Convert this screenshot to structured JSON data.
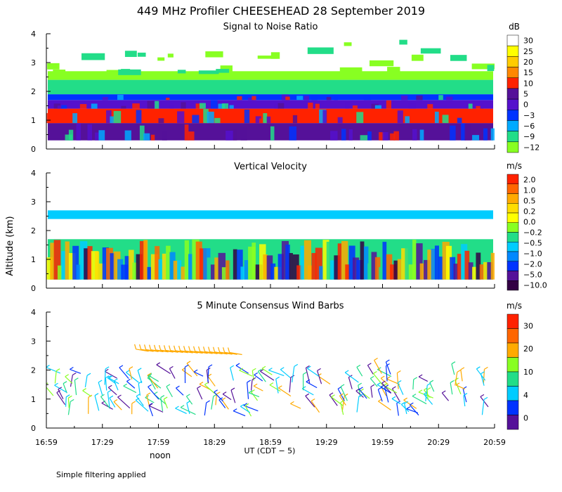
{
  "title": "449 MHz Profiler CHEESEHEAD 28 September 2019",
  "ylabel": "Altitude (km)",
  "footer": "Simple filtering applied",
  "chart_data": [
    {
      "type": "heatmap",
      "title": "Signal to Noise Ratio",
      "colorbar_unit": "dB",
      "colorbar_labels": [
        "30",
        "25",
        "20",
        "15",
        "10",
        "5",
        "0",
        "−3",
        "−6",
        "−9",
        "−12"
      ],
      "colorbar_colors": [
        "#ffffff",
        "#ffff00",
        "#ffcc00",
        "#ff8800",
        "#ff2200",
        "#551199",
        "#5511cc",
        "#0033ff",
        "#00aaff",
        "#22dd88",
        "#88ff22"
      ],
      "x_ticks": [
        "16:59",
        "17:29",
        "17:59",
        "18:29",
        "18:59",
        "19:29",
        "19:59",
        "20:29",
        "20:59"
      ],
      "y_ticks": [
        0,
        1,
        2,
        3,
        4
      ],
      "ylim": [
        0,
        4
      ],
      "xlim": [
        "16:59",
        "20:59"
      ],
      "layers": [
        {
          "from_km": 0.3,
          "to_km": 0.9,
          "color": "#551199"
        },
        {
          "from_km": 0.9,
          "to_km": 1.4,
          "color": "#ff2200"
        },
        {
          "from_km": 1.4,
          "to_km": 1.7,
          "color": "#5511cc"
        },
        {
          "from_km": 1.7,
          "to_km": 1.9,
          "color": "#0033ff"
        },
        {
          "from_km": 1.9,
          "to_km": 2.4,
          "color": "#22dd88"
        },
        {
          "from_km": 2.4,
          "to_km": 2.7,
          "color": "#88ff22"
        }
      ]
    },
    {
      "type": "heatmap",
      "title": "Vertical Velocity",
      "colorbar_unit": "m/s",
      "colorbar_labels": [
        "2.0",
        "1.0",
        "0.5",
        "0.2",
        "0.0",
        "−0.2",
        "−0.5",
        "−1.0",
        "−2.0",
        "−5.0",
        "−10.0"
      ],
      "colorbar_colors": [
        "#ff2200",
        "#ff6600",
        "#ffaa00",
        "#ffdd00",
        "#ffff00",
        "#88ff22",
        "#22dd88",
        "#00ccff",
        "#0088ff",
        "#0033ff",
        "#551199",
        "#330044"
      ],
      "x_ticks": [
        "16:59",
        "17:29",
        "17:59",
        "18:29",
        "18:59",
        "19:29",
        "19:59",
        "20:29",
        "20:59"
      ],
      "y_ticks": [
        0,
        1,
        2,
        3,
        4
      ],
      "ylim": [
        0,
        4
      ],
      "xlim": [
        "16:59",
        "20:59"
      ],
      "layers": [
        {
          "from_km": 0.3,
          "to_km": 1.7,
          "color": "#22dd88"
        },
        {
          "from_km": 2.4,
          "to_km": 2.7,
          "color": "#00ccff"
        }
      ]
    },
    {
      "type": "scatter",
      "title": "5 Minute Consensus Wind Barbs",
      "colorbar_unit": "m/s",
      "colorbar_labels": [
        "30",
        "20",
        "10",
        "4",
        "0"
      ],
      "colorbar_colors": [
        "#ff2200",
        "#ff6600",
        "#ffaa00",
        "#88ff22",
        "#22dd88",
        "#00ccff",
        "#0033ff",
        "#551199"
      ],
      "x_ticks": [
        "16:59",
        "17:29",
        "17:59",
        "18:29",
        "18:59",
        "19:29",
        "19:59",
        "20:29",
        "20:59"
      ],
      "y_ticks": [
        0,
        1,
        2,
        3,
        4
      ],
      "ylim": [
        0,
        4
      ],
      "xlim": [
        "16:59",
        "20:59"
      ],
      "xlabel": "UT  (CDT − 5)",
      "x_annotation": "noon"
    }
  ]
}
